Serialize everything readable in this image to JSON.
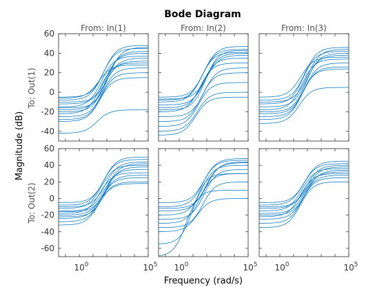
{
  "chart_data": {
    "type": "line",
    "title": "Bode Diagram",
    "xlabel": "Frequency  (rad/s)",
    "ylabel": "Magnitude (dB)",
    "xscale": "log",
    "x_ticks": [
      {
        "base": "10",
        "exp": "0"
      },
      {
        "base": "10",
        "exp": "5"
      }
    ],
    "col_titles": [
      "From: In(1)",
      "From: In(2)",
      "From: In(3)"
    ],
    "row_titles": [
      "To: Out(1)",
      "To: Out(2)"
    ],
    "rows": [
      {
        "yticks": [
          60,
          40,
          20,
          0,
          -20,
          -40
        ],
        "ylim": [
          -50,
          60
        ]
      },
      {
        "yticks": [
          60,
          40,
          20,
          0,
          -20,
          -40,
          -60
        ],
        "ylim": [
          -70,
          60
        ]
      }
    ],
    "xlim_log10": [
      -1.5,
      5
    ],
    "line_color": "#0072bd",
    "panels": [
      {
        "row": 0,
        "col": 0,
        "curves": [
          {
            "low": -5,
            "high": 48,
            "fc": 1.8
          },
          {
            "low": -8,
            "high": 45,
            "fc": 1.7
          },
          {
            "low": -12,
            "high": 40,
            "fc": 1.9
          },
          {
            "low": -15,
            "high": 37,
            "fc": 1.6
          },
          {
            "low": -18,
            "high": 32,
            "fc": 1.8
          },
          {
            "low": -22,
            "high": 30,
            "fc": 1.5
          },
          {
            "low": -25,
            "high": 25,
            "fc": 1.7
          },
          {
            "low": -28,
            "high": 20,
            "fc": 1.6
          },
          {
            "low": -10,
            "high": 35,
            "fc": 2.0
          },
          {
            "low": -20,
            "high": 42,
            "fc": 1.9
          },
          {
            "low": -30,
            "high": 15,
            "fc": 1.5
          },
          {
            "low": -42,
            "high": -18,
            "fc": 1.3
          },
          {
            "low": -6,
            "high": 28,
            "fc": 1.4
          },
          {
            "low": -16,
            "high": 46,
            "fc": 2.1
          }
        ]
      },
      {
        "row": 0,
        "col": 1,
        "curves": [
          {
            "low": -5,
            "high": 47,
            "fc": 1.8
          },
          {
            "low": -8,
            "high": 44,
            "fc": 1.7
          },
          {
            "low": -10,
            "high": 41,
            "fc": 1.6
          },
          {
            "low": -13,
            "high": 40,
            "fc": 1.9
          },
          {
            "low": -16,
            "high": 35,
            "fc": 1.7
          },
          {
            "low": -20,
            "high": 30,
            "fc": 1.5
          },
          {
            "low": -25,
            "high": 25,
            "fc": 1.8
          },
          {
            "low": -30,
            "high": 20,
            "fc": 1.6
          },
          {
            "low": -35,
            "high": 10,
            "fc": 1.4
          },
          {
            "low": -40,
            "high": 0,
            "fc": 1.3
          },
          {
            "low": -44,
            "high": -5,
            "fc": 1.2
          },
          {
            "low": -7,
            "high": 38,
            "fc": 2.0
          },
          {
            "low": -18,
            "high": 43,
            "fc": 1.9
          }
        ]
      },
      {
        "row": 0,
        "col": 2,
        "curves": [
          {
            "low": -8,
            "high": 46,
            "fc": 1.8
          },
          {
            "low": -12,
            "high": 42,
            "fc": 1.7
          },
          {
            "low": -15,
            "high": 38,
            "fc": 1.9
          },
          {
            "low": -18,
            "high": 34,
            "fc": 1.6
          },
          {
            "low": -22,
            "high": 30,
            "fc": 1.8
          },
          {
            "low": -25,
            "high": 26,
            "fc": 1.7
          },
          {
            "low": -28,
            "high": 24,
            "fc": 1.6
          },
          {
            "low": -32,
            "high": 5,
            "fc": 1.4
          },
          {
            "low": -10,
            "high": 44,
            "fc": 2.0
          },
          {
            "low": -20,
            "high": 40,
            "fc": 1.9
          },
          {
            "low": -5,
            "high": 36,
            "fc": 1.5
          }
        ]
      },
      {
        "row": 1,
        "col": 0,
        "curves": [
          {
            "low": -5,
            "high": 50,
            "fc": 1.8
          },
          {
            "low": -8,
            "high": 47,
            "fc": 1.7
          },
          {
            "low": -10,
            "high": 44,
            "fc": 1.9
          },
          {
            "low": -12,
            "high": 40,
            "fc": 1.6
          },
          {
            "low": -15,
            "high": 35,
            "fc": 1.8
          },
          {
            "low": -18,
            "high": 31,
            "fc": 1.5
          },
          {
            "low": -20,
            "high": 28,
            "fc": 1.7
          },
          {
            "low": -24,
            "high": 25,
            "fc": 1.6
          },
          {
            "low": -28,
            "high": 20,
            "fc": 1.5
          },
          {
            "low": -32,
            "high": 18,
            "fc": 1.4
          },
          {
            "low": -16,
            "high": 42,
            "fc": 2.0
          },
          {
            "low": -22,
            "high": 38,
            "fc": 1.9
          }
        ]
      },
      {
        "row": 1,
        "col": 1,
        "curves": [
          {
            "low": -5,
            "high": 48,
            "fc": 1.8
          },
          {
            "low": -10,
            "high": 46,
            "fc": 1.7
          },
          {
            "low": -15,
            "high": 43,
            "fc": 1.9
          },
          {
            "low": -20,
            "high": 40,
            "fc": 1.6
          },
          {
            "low": -25,
            "high": 35,
            "fc": 1.8
          },
          {
            "low": -30,
            "high": 30,
            "fc": 1.5
          },
          {
            "low": -35,
            "high": 20,
            "fc": 1.7
          },
          {
            "low": -40,
            "high": 0,
            "fc": 1.3
          },
          {
            "low": -70,
            "high": 10,
            "fc": 0.5
          },
          {
            "low": -55,
            "high": 30,
            "fc": 1.0
          },
          {
            "low": -12,
            "high": 44,
            "fc": 2.0
          }
        ]
      },
      {
        "row": 1,
        "col": 2,
        "curves": [
          {
            "low": -5,
            "high": 45,
            "fc": 1.8
          },
          {
            "low": -8,
            "high": 42,
            "fc": 1.7
          },
          {
            "low": -12,
            "high": 40,
            "fc": 1.9
          },
          {
            "low": -15,
            "high": 36,
            "fc": 1.6
          },
          {
            "low": -18,
            "high": 32,
            "fc": 1.8
          },
          {
            "low": -22,
            "high": 30,
            "fc": 1.5
          },
          {
            "low": -25,
            "high": 28,
            "fc": 1.7
          },
          {
            "low": -30,
            "high": 25,
            "fc": 1.6
          },
          {
            "low": -35,
            "high": 20,
            "fc": 1.5
          },
          {
            "low": -10,
            "high": 38,
            "fc": 2.0
          },
          {
            "low": -20,
            "high": 34,
            "fc": 1.9
          }
        ]
      }
    ]
  }
}
